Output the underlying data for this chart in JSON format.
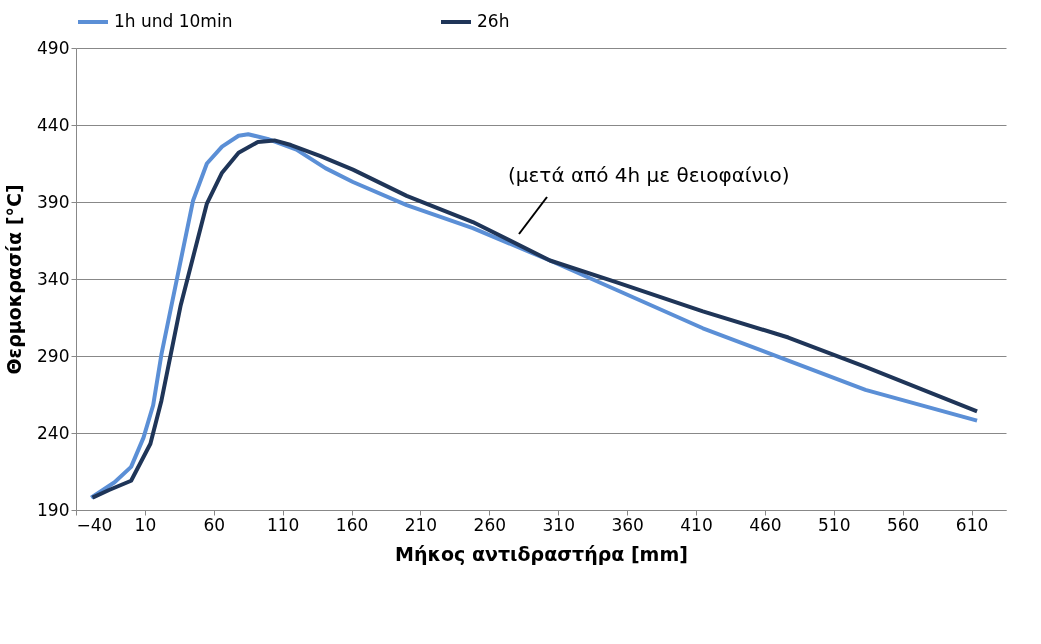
{
  "chart_data": {
    "type": "line",
    "xlabel": "Μήκος αντιδραστήρα [mm]",
    "ylabel": "Θερμοκρασία [°C]",
    "xlim": [
      -40,
      635
    ],
    "ylim": [
      190,
      490
    ],
    "xticks": [
      -40,
      10,
      60,
      110,
      160,
      210,
      260,
      310,
      360,
      410,
      460,
      510,
      560,
      610
    ],
    "yticks": [
      190,
      240,
      290,
      340,
      390,
      440,
      490
    ],
    "grid": "y",
    "legend": "top",
    "line_style": "solid",
    "marker": "none",
    "series": [
      {
        "name": "1h und 10min",
        "color": "#5b8fd6",
        "x": [
          -29,
          -12,
          0,
          9,
          16,
          22,
          33,
          45,
          55,
          66,
          78,
          85,
          99,
          120,
          141,
          161,
          200,
          248,
          304,
          352,
          415,
          477,
          533,
          614
        ],
        "values": [
          198,
          208,
          218,
          237,
          258,
          291,
          339,
          391,
          415,
          426,
          433,
          434,
          431,
          424,
          412,
          403,
          388,
          373,
          352,
          333,
          308,
          287,
          268,
          248
        ]
      },
      {
        "name": "26h",
        "color": "#1f3558",
        "x": [
          -28,
          -16,
          0,
          14,
          22,
          36,
          55,
          66,
          78,
          92,
          104,
          116,
          137,
          161,
          200,
          248,
          304,
          352,
          415,
          477,
          533,
          614
        ],
        "values": [
          198,
          203,
          209,
          233,
          261,
          323,
          389,
          409,
          422,
          429,
          430,
          427,
          420,
          411,
          394,
          377,
          352,
          338,
          319,
          302,
          283,
          254
        ]
      }
    ],
    "annotations": [
      "(μετά από 4h με θειοφαίνιο)"
    ]
  }
}
